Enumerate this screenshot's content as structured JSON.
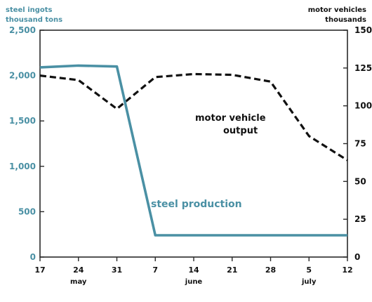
{
  "chart_data": {
    "type": "line",
    "x": [
      "17",
      "24",
      "31",
      "7",
      "14",
      "21",
      "28",
      "5",
      "12"
    ],
    "month_labels": [
      {
        "label": "may",
        "x": "24"
      },
      {
        "label": "june",
        "x": "14"
      },
      {
        "label": "july",
        "x": "5"
      }
    ],
    "y_left": {
      "title_line1": "steel ingots",
      "title_line2": "thousand tons",
      "ylim": [
        0,
        2500
      ],
      "ticks": [
        0,
        500,
        1000,
        1500,
        2000,
        2500
      ],
      "tick_labels": [
        "0",
        "500",
        "1,000",
        "1,500",
        "2,000",
        "2,500"
      ]
    },
    "y_right": {
      "title_line1": "motor vehicles",
      "title_line2": "thousands",
      "ylim": [
        0,
        150
      ],
      "ticks": [
        0,
        25,
        50,
        75,
        100,
        125,
        150
      ],
      "tick_labels": [
        "0",
        "25",
        "50",
        "75",
        "100",
        "125",
        "150"
      ]
    },
    "series": [
      {
        "name": "steel production",
        "axis": "left",
        "color": "#4a90a4",
        "style": "solid",
        "points": [
          {
            "x": "17",
            "y": 2090
          },
          {
            "x": "24",
            "y": 2110
          },
          {
            "x": "31",
            "y": 2100
          },
          {
            "x": "7",
            "y": 240
          },
          {
            "x": "14",
            "y": 240
          },
          {
            "x": "21",
            "y": 240
          },
          {
            "x": "28",
            "y": 240
          },
          {
            "x": "5",
            "y": 240
          },
          {
            "x": "12",
            "y": 240
          }
        ]
      },
      {
        "name": "motor vehicle output",
        "name_line1": "motor vehicle",
        "name_line2": "output",
        "axis": "right",
        "color": "#111111",
        "style": "dashed",
        "points": [
          {
            "x": "17",
            "y": 120
          },
          {
            "x": "24",
            "y": 117
          },
          {
            "x": "31",
            "y": 98
          },
          {
            "x": "7",
            "y": 119
          },
          {
            "x": "14",
            "y": 121
          },
          {
            "x": "21",
            "y": 120.5
          },
          {
            "x": "28",
            "y": 116
          },
          {
            "x": "5",
            "y": 80
          },
          {
            "x": "12",
            "y": 64
          }
        ]
      }
    ],
    "grid": false,
    "legend": "none (series labeled inline)"
  }
}
